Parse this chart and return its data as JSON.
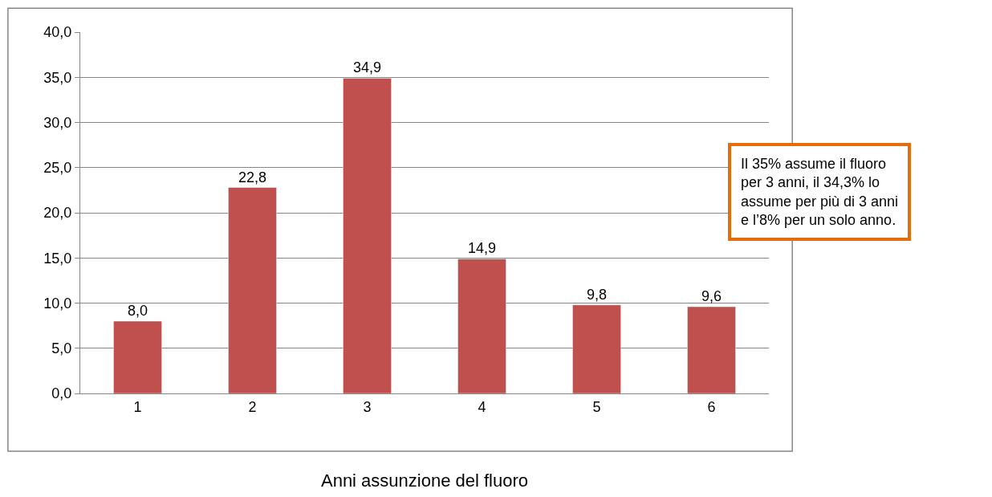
{
  "chart_data": {
    "type": "bar",
    "xlabel": "Anni assunzione del fluoro",
    "categories": [
      "1",
      "2",
      "3",
      "4",
      "5",
      "6"
    ],
    "values": [
      8.0,
      22.8,
      34.9,
      14.9,
      9.8,
      9.6
    ],
    "value_labels": [
      "8,0",
      "22,8",
      "34,9",
      "14,9",
      "9,8",
      "9,6"
    ],
    "color": "#c0504d",
    "ylim": [
      0,
      40
    ],
    "yticks": [
      {
        "value": 0,
        "label": "0,0"
      },
      {
        "value": 5,
        "label": "5,0"
      },
      {
        "value": 10,
        "label": "10,0"
      },
      {
        "value": 15,
        "label": "15,0"
      },
      {
        "value": 20,
        "label": "20,0"
      },
      {
        "value": 25,
        "label": "25,0"
      },
      {
        "value": 30,
        "label": "30,0"
      },
      {
        "value": 35,
        "label": "35,0"
      },
      {
        "value": 40,
        "label": "40,0"
      }
    ],
    "grid": "y",
    "annotations": [
      "Il 35% assume il fluoro per 3 anni, il 34,3% lo assume per più di 3 anni e l’8% per un solo anno."
    ]
  }
}
